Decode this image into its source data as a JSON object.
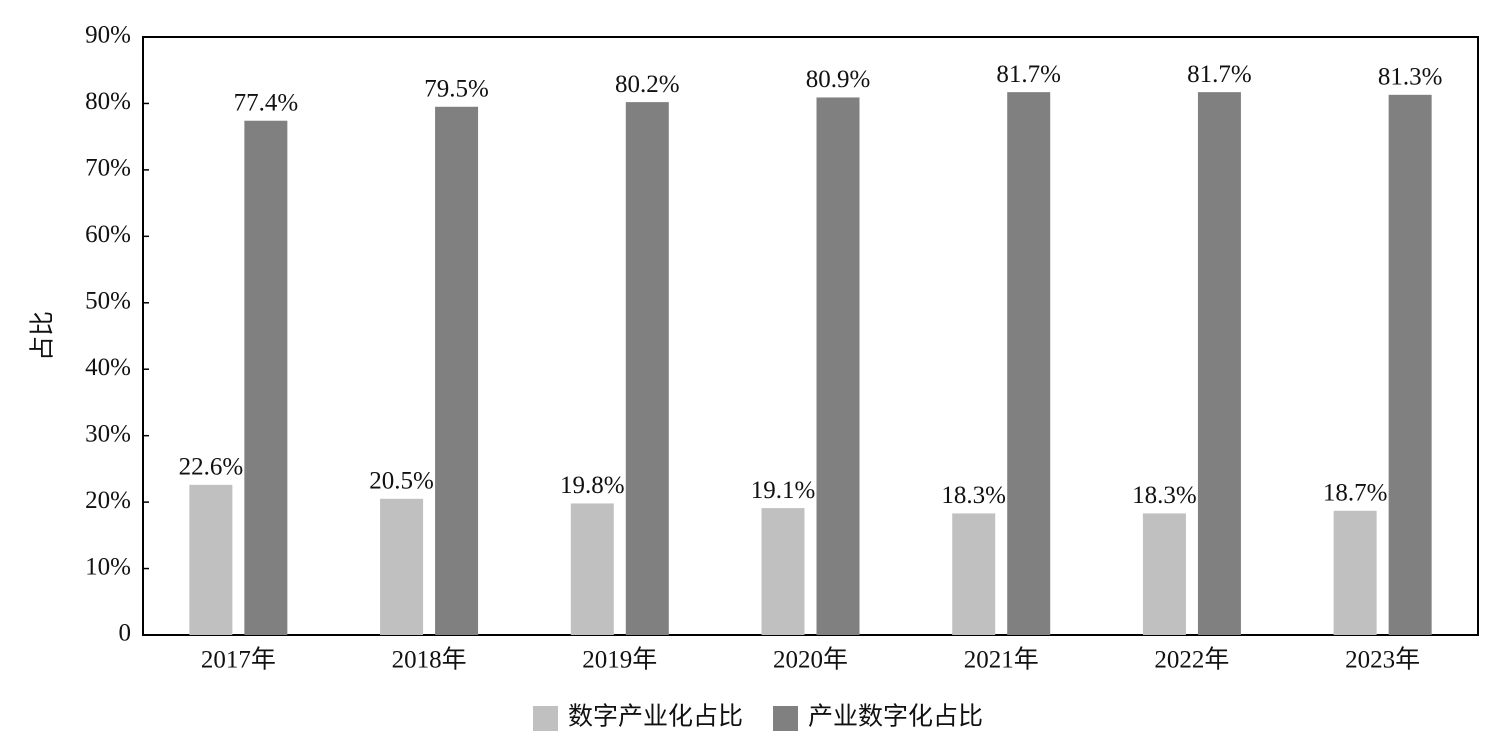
{
  "chart_data": {
    "type": "bar",
    "y_label": "占比",
    "categories": [
      "2017年",
      "2018年",
      "2019年",
      "2020年",
      "2021年",
      "2022年",
      "2023年"
    ],
    "series": [
      {
        "name": "数字产业化占比",
        "color": "#c0c0c0",
        "values": [
          22.6,
          20.5,
          19.8,
          19.1,
          18.3,
          18.3,
          18.7
        ],
        "value_labels": [
          "22.6%",
          "20.5%",
          "19.8%",
          "19.1%",
          "18.3%",
          "18.3%",
          "18.7%"
        ]
      },
      {
        "name": "产业数字化占比",
        "color": "#808080",
        "values": [
          77.4,
          79.5,
          80.2,
          80.9,
          81.7,
          81.7,
          81.3
        ],
        "value_labels": [
          "77.4%",
          "79.5%",
          "80.2%",
          "80.9%",
          "81.7%",
          "81.7%",
          "81.3%"
        ]
      }
    ],
    "ylim": [
      0,
      90
    ],
    "yticks": [
      0,
      {
        "value": 10,
        "label": "10%"
      },
      {
        "value": 20,
        "label": "20%"
      },
      {
        "value": 30,
        "label": "30%"
      },
      {
        "value": 40,
        "label": "40%"
      },
      {
        "value": 50,
        "label": "50%"
      },
      {
        "value": 60,
        "label": "60%"
      },
      {
        "value": 70,
        "label": "70%"
      },
      {
        "value": 80,
        "label": "80%"
      },
      {
        "value": 90,
        "label": "90%"
      }
    ],
    "grid": false,
    "legend": "bottom"
  }
}
